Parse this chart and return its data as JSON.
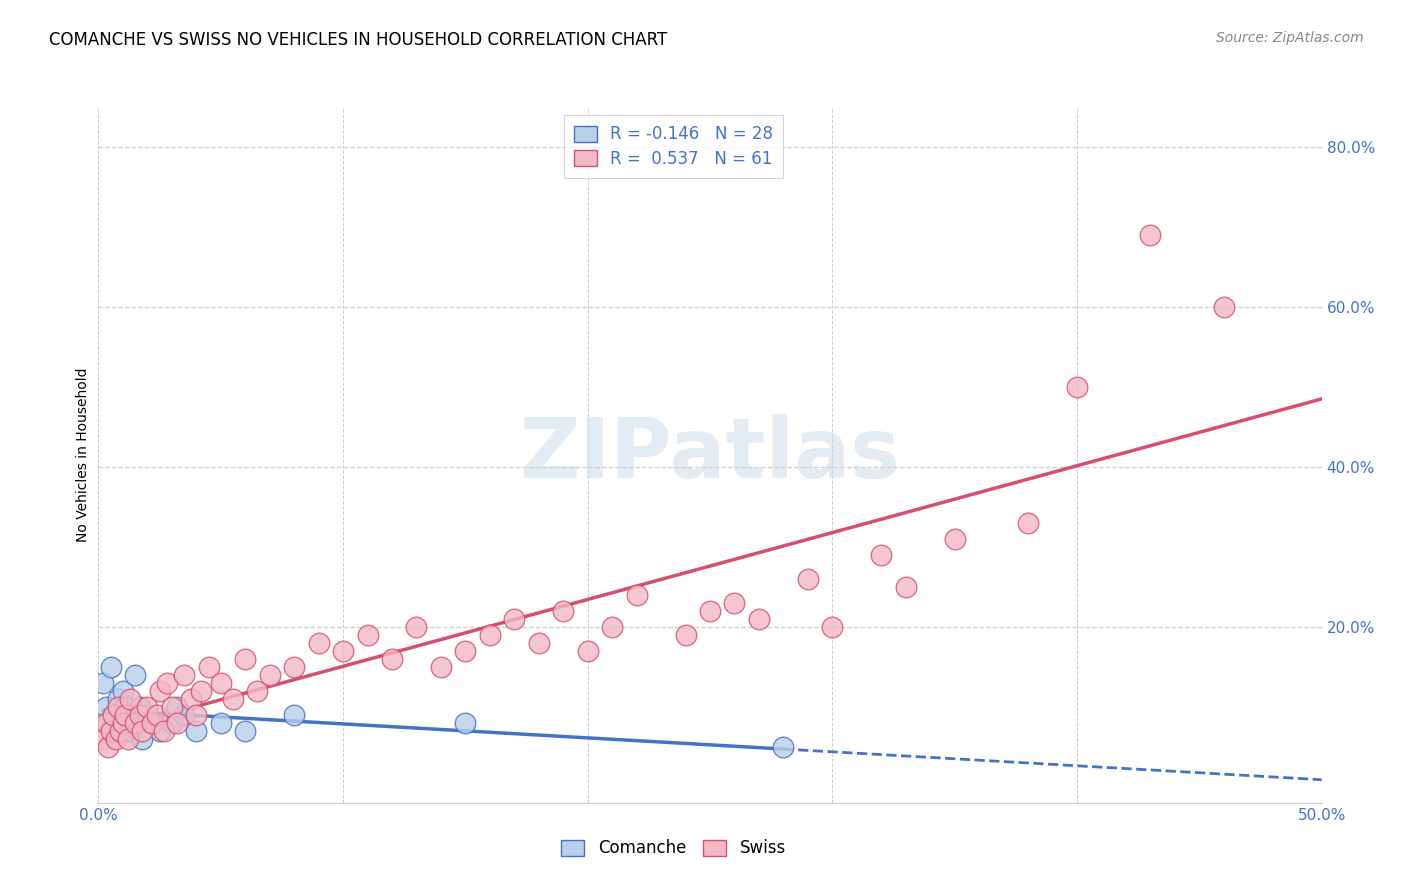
{
  "title": "COMANCHE VS SWISS NO VEHICLES IN HOUSEHOLD CORRELATION CHART",
  "source": "Source: ZipAtlas.com",
  "ylabel": "No Vehicles in Household",
  "xlim": [
    0.0,
    0.5
  ],
  "ylim": [
    -0.02,
    0.85
  ],
  "xticks": [
    0.0,
    0.1,
    0.2,
    0.3,
    0.4,
    0.5
  ],
  "xtick_labels": [
    "0.0%",
    "",
    "",
    "",
    "",
    "50.0%"
  ],
  "ytick_labels": [
    "20.0%",
    "40.0%",
    "60.0%",
    "80.0%"
  ],
  "yticks": [
    0.2,
    0.4,
    0.6,
    0.8
  ],
  "grid_color": "#cccccc",
  "background_color": "#ffffff",
  "comanche_R": -0.146,
  "comanche_N": 28,
  "swiss_R": 0.537,
  "swiss_N": 61,
  "comanche_color": "#b8d0e8",
  "swiss_color": "#f2b8c6",
  "comanche_line_color": "#4472c4",
  "swiss_line_color": "#d45070",
  "comanche_x": [
    0.002,
    0.003,
    0.004,
    0.005,
    0.006,
    0.007,
    0.008,
    0.009,
    0.01,
    0.011,
    0.012,
    0.013,
    0.015,
    0.016,
    0.017,
    0.018,
    0.02,
    0.022,
    0.025,
    0.03,
    0.032,
    0.035,
    0.04,
    0.05,
    0.06,
    0.08,
    0.15,
    0.28
  ],
  "comanche_y": [
    0.13,
    0.1,
    0.08,
    0.15,
    0.09,
    0.07,
    0.11,
    0.08,
    0.12,
    0.1,
    0.09,
    0.07,
    0.14,
    0.08,
    0.1,
    0.06,
    0.09,
    0.08,
    0.07,
    0.08,
    0.1,
    0.09,
    0.07,
    0.08,
    0.07,
    0.09,
    0.08,
    0.05
  ],
  "swiss_x": [
    0.002,
    0.003,
    0.004,
    0.005,
    0.006,
    0.007,
    0.008,
    0.009,
    0.01,
    0.011,
    0.012,
    0.013,
    0.015,
    0.017,
    0.018,
    0.02,
    0.022,
    0.024,
    0.025,
    0.027,
    0.028,
    0.03,
    0.032,
    0.035,
    0.038,
    0.04,
    0.042,
    0.045,
    0.05,
    0.055,
    0.06,
    0.065,
    0.07,
    0.08,
    0.09,
    0.1,
    0.11,
    0.12,
    0.13,
    0.14,
    0.15,
    0.16,
    0.17,
    0.18,
    0.19,
    0.2,
    0.21,
    0.22,
    0.24,
    0.25,
    0.26,
    0.27,
    0.29,
    0.3,
    0.32,
    0.33,
    0.35,
    0.38,
    0.4,
    0.43,
    0.46
  ],
  "swiss_y": [
    0.06,
    0.08,
    0.05,
    0.07,
    0.09,
    0.06,
    0.1,
    0.07,
    0.08,
    0.09,
    0.06,
    0.11,
    0.08,
    0.09,
    0.07,
    0.1,
    0.08,
    0.09,
    0.12,
    0.07,
    0.13,
    0.1,
    0.08,
    0.14,
    0.11,
    0.09,
    0.12,
    0.15,
    0.13,
    0.11,
    0.16,
    0.12,
    0.14,
    0.15,
    0.18,
    0.17,
    0.19,
    0.16,
    0.2,
    0.15,
    0.17,
    0.19,
    0.21,
    0.18,
    0.22,
    0.17,
    0.2,
    0.24,
    0.19,
    0.22,
    0.23,
    0.21,
    0.26,
    0.2,
    0.29,
    0.25,
    0.31,
    0.33,
    0.5,
    0.69,
    0.6
  ],
  "title_fontsize": 12,
  "axis_label_fontsize": 10,
  "tick_fontsize": 11,
  "legend_fontsize": 12,
  "source_fontsize": 10,
  "watermark_text": "ZIPatlas",
  "watermark_fontsize": 60
}
